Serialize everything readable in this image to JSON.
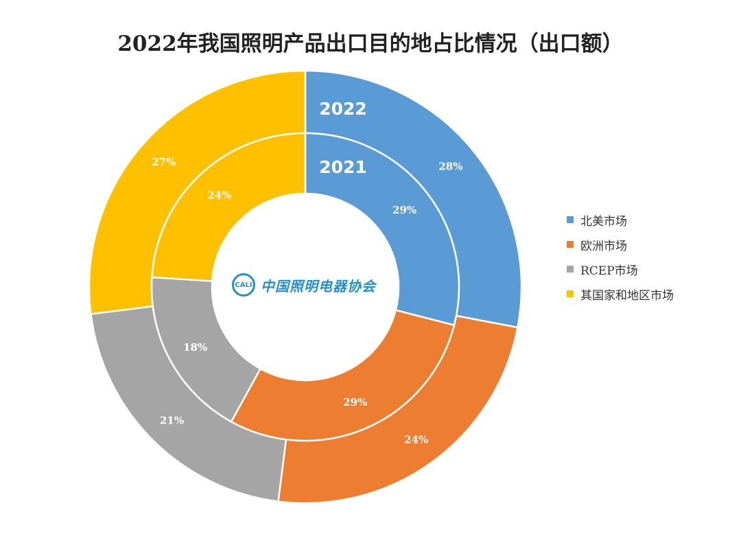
{
  "chart_data": {
    "type": "pie",
    "title": "2022年我国照明产品出口目的地占比情况（出口额）",
    "categories": [
      "北美市场",
      "欧洲市场",
      "RCEP市场",
      "其国家和地区市场"
    ],
    "colors": [
      "#5b9bd5",
      "#ed7d31",
      "#a5a5a5",
      "#ffc000"
    ],
    "series": [
      {
        "name": "2022",
        "values": [
          28,
          24,
          21,
          27
        ],
        "labels": [
          "28%",
          "24%",
          "21%",
          "27%"
        ]
      },
      {
        "name": "2021",
        "values": [
          29,
          29,
          18,
          24
        ],
        "labels": [
          "29%",
          "29%",
          "18%",
          "24%"
        ]
      }
    ],
    "legend_position": "right"
  },
  "logo": {
    "mark": "CALI",
    "text": "中国照明电器协会"
  }
}
